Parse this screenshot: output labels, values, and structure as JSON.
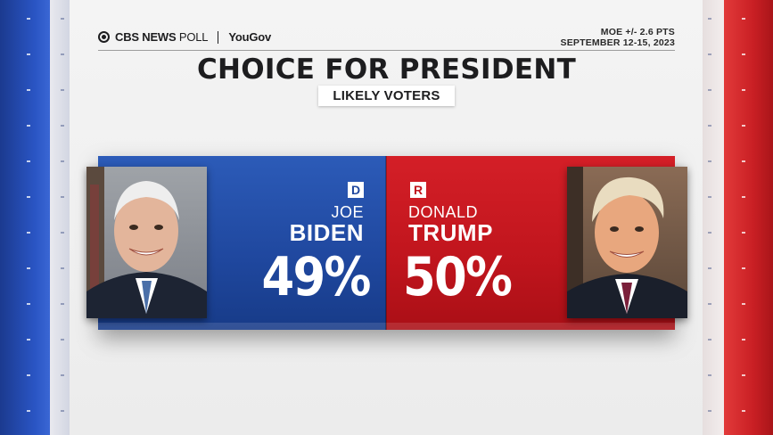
{
  "header": {
    "logo_cbs": "CBS NEWS",
    "logo_poll": "POLL",
    "logo_partner": "YouGov",
    "moe": "MOE +/- 2.6 PTS",
    "dates": "SEPTEMBER 12-15, 2023"
  },
  "title": "CHOICE FOR PRESIDENT",
  "subtitle": "LIKELY VOTERS",
  "candidates": [
    {
      "party": "D",
      "first_name": "JOE",
      "last_name": "BIDEN",
      "percent": "49%",
      "color": "#1f479e"
    },
    {
      "party": "R",
      "first_name": "DONALD",
      "last_name": "TRUMP",
      "percent": "50%",
      "color": "#c0151d"
    }
  ],
  "colors": {
    "democrat": "#1f479e",
    "republican": "#c0151d",
    "background": "#f0f0f0"
  }
}
